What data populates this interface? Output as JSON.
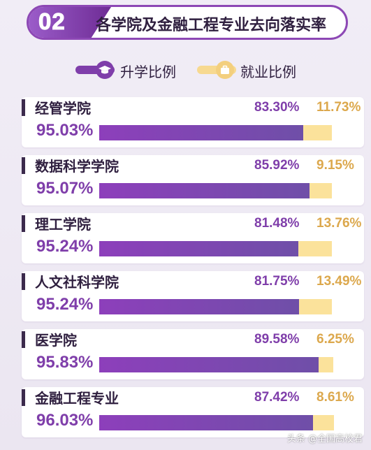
{
  "header": {
    "number": "02",
    "title": "各学院及金融工程专业去向落实率"
  },
  "legend": [
    {
      "label": "升学比例",
      "color": "#7f3eaa",
      "icon": "graduation-cap-icon"
    },
    {
      "label": "就业比例",
      "color": "#f7d990",
      "icon": "briefcase-icon"
    }
  ],
  "colors": {
    "further": "#7f3eaa",
    "job": "#fbe29b",
    "total": "#7f3eaa"
  },
  "watermark": "头条 @全国高校君",
  "chart_data": {
    "type": "bar",
    "orientation": "horizontal",
    "stacked": true,
    "xlim": [
      0,
      100
    ],
    "categories": [
      "经管学院",
      "数据科学学院",
      "理工学院",
      "人文社科学院",
      "医学院",
      "金融工程专业"
    ],
    "series": [
      {
        "name": "升学比例",
        "values": [
          83.3,
          85.92,
          81.48,
          81.75,
          89.58,
          87.42
        ],
        "labels": [
          "83.30%",
          "85.92%",
          "81.48%",
          "81.75%",
          "89.58%",
          "87.42%"
        ]
      },
      {
        "name": "就业比例",
        "values": [
          11.73,
          9.15,
          13.76,
          13.49,
          6.25,
          8.61
        ],
        "labels": [
          "11.73%",
          "9.15%",
          "13.76%",
          "13.49%",
          "6.25%",
          "8.61%"
        ]
      }
    ],
    "totals": [
      "95.03%",
      "95.07%",
      "95.24%",
      "95.24%",
      "95.83%",
      "96.03%"
    ]
  }
}
